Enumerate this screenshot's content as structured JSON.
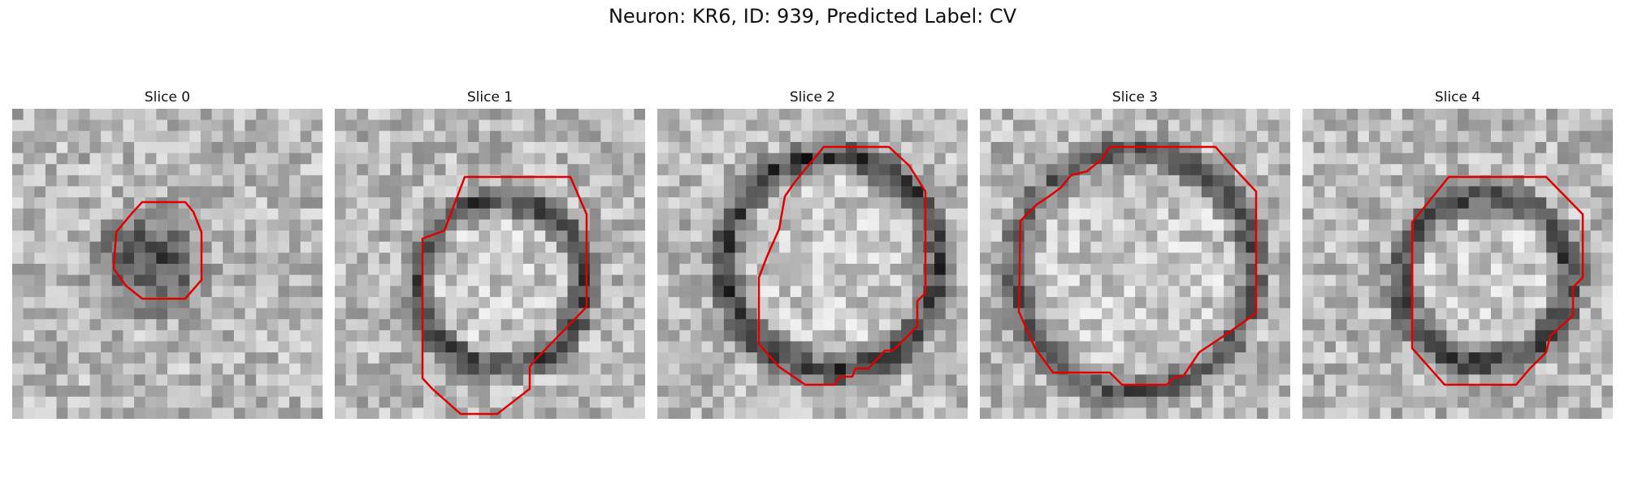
{
  "figure": {
    "title": "Neuron: KR6, ID: 939, Predicted Label: CV",
    "contour_color": "#e00000",
    "panels": [
      {
        "title": "Slice 0"
      },
      {
        "title": "Slice 1"
      },
      {
        "title": "Slice 2"
      },
      {
        "title": "Slice 3"
      },
      {
        "title": "Slice 4"
      }
    ]
  }
}
